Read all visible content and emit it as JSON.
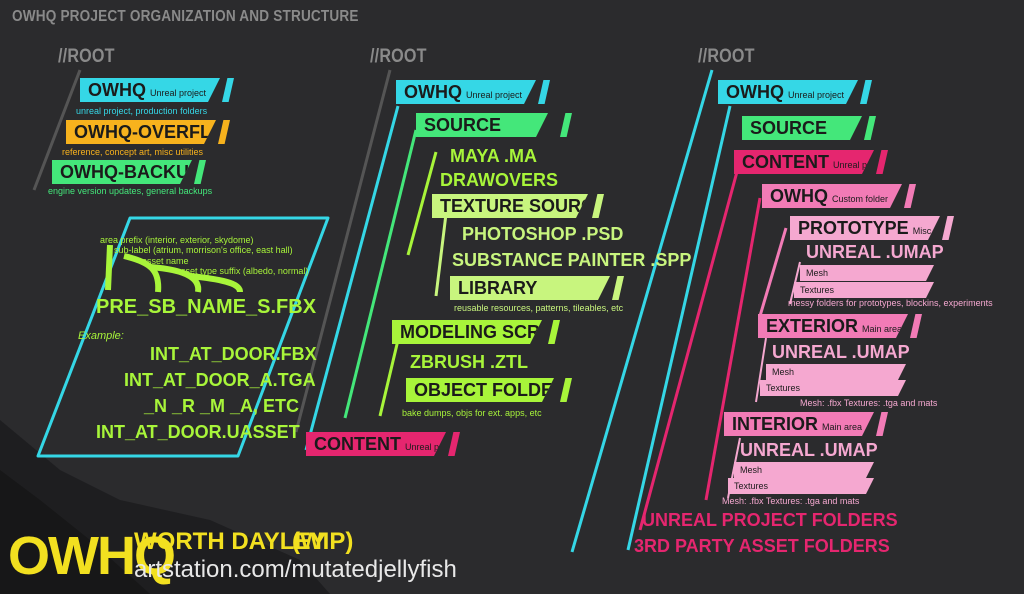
{
  "title": "OWHQ PROJECT ORGANIZATION AND STRUCTURE",
  "colors": {
    "cyan": "#35d7e6",
    "orange": "#f7b21d",
    "green": "#44e77a",
    "lime": "#a8f53a",
    "pale_lime": "#c8f57e",
    "magenta": "#e5266f",
    "pink": "#f27bb6",
    "light_pink": "#f5a8d0",
    "bg": "#2b2b2d"
  },
  "col1": {
    "root": "//ROOT",
    "owhq": {
      "name": "OWHQ",
      "note": "Unreal project",
      "caption": "unreal project, production folders"
    },
    "overflow": {
      "name": "OWHQ-OVERFLOW",
      "caption": "reference, concept art, misc utilities"
    },
    "backup": {
      "name": "OWHQ-BACKUP",
      "caption": "engine version updates, general backups"
    },
    "naming": {
      "area_prefix": "area prefix (interior, exterior, skydome)",
      "sub_label": "sub-label (atrium, morrison's office, east hall)",
      "asset_name": "asset name",
      "asset_type": "asset type suffix (albedo, normal)",
      "pattern": "PRE_SB_NAME_S.FBX",
      "example_label": "Example:",
      "examples": [
        "INT_AT_DOOR.FBX",
        "INT_AT_DOOR_A.TGA",
        "_N _R _M _A, ETC",
        "INT_AT_DOOR.UASSET"
      ]
    }
  },
  "col2": {
    "root": "//ROOT",
    "owhq": {
      "name": "OWHQ",
      "note": "Unreal project"
    },
    "source": "SOURCE",
    "maya": "MAYA .MA",
    "drawovers": "DRAWOVERS",
    "texture_source": "TEXTURE SOURCE",
    "photoshop": "PHOTOSHOP .PSD",
    "substance": "SUBSTANCE PAINTER .SPP",
    "library": {
      "name": "LIBRARY",
      "caption": "reusable resources, patterns, tileables, etc"
    },
    "modeling_scratch": "MODELING SCRATCH",
    "zbrush": "ZBRUSH .ZTL",
    "object_folders": {
      "name": "OBJECT FOLDERS",
      "caption": "bake dumps, objs for ext. apps, etc"
    },
    "content": {
      "name": "CONTENT",
      "note": "Unreal project"
    }
  },
  "col3": {
    "root": "//ROOT",
    "owhq": {
      "name": "OWHQ",
      "note": "Unreal project"
    },
    "source": "SOURCE",
    "content": {
      "name": "CONTENT",
      "note": "Unreal project"
    },
    "owhq_custom": {
      "name": "OWHQ",
      "note": "Custom folder"
    },
    "prototype": {
      "name": "PROTOTYPE",
      "note": "Misc. junk"
    },
    "proto_umap": "UNREAL .UMAP",
    "proto_mesh": "Mesh",
    "proto_textures": "Textures",
    "proto_caption": "messy folders for prototypes, blockins, experiments",
    "exterior": {
      "name": "EXTERIOR",
      "note": "Main area"
    },
    "ext_umap": "UNREAL .UMAP",
    "ext_mesh": "Mesh",
    "ext_textures": "Textures",
    "ext_caption": "Mesh: .fbx Textures: .tga and mats",
    "interior": {
      "name": "INTERIOR",
      "note": "Main area"
    },
    "int_umap": "UNREAL .UMAP",
    "int_mesh": "Mesh",
    "int_textures": "Textures",
    "int_caption": "Mesh: .fbx Textures: .tga and mats",
    "unreal_project_folders": "UNREAL PROJECT FOLDERS",
    "third_party": "3RD PARTY ASSET FOLDERS"
  },
  "footer": {
    "logo": "OWHQ",
    "author": "WORTH DAYLEY",
    "status": "(WIP)",
    "url": "artstation.com/mutatedjellyfish"
  }
}
